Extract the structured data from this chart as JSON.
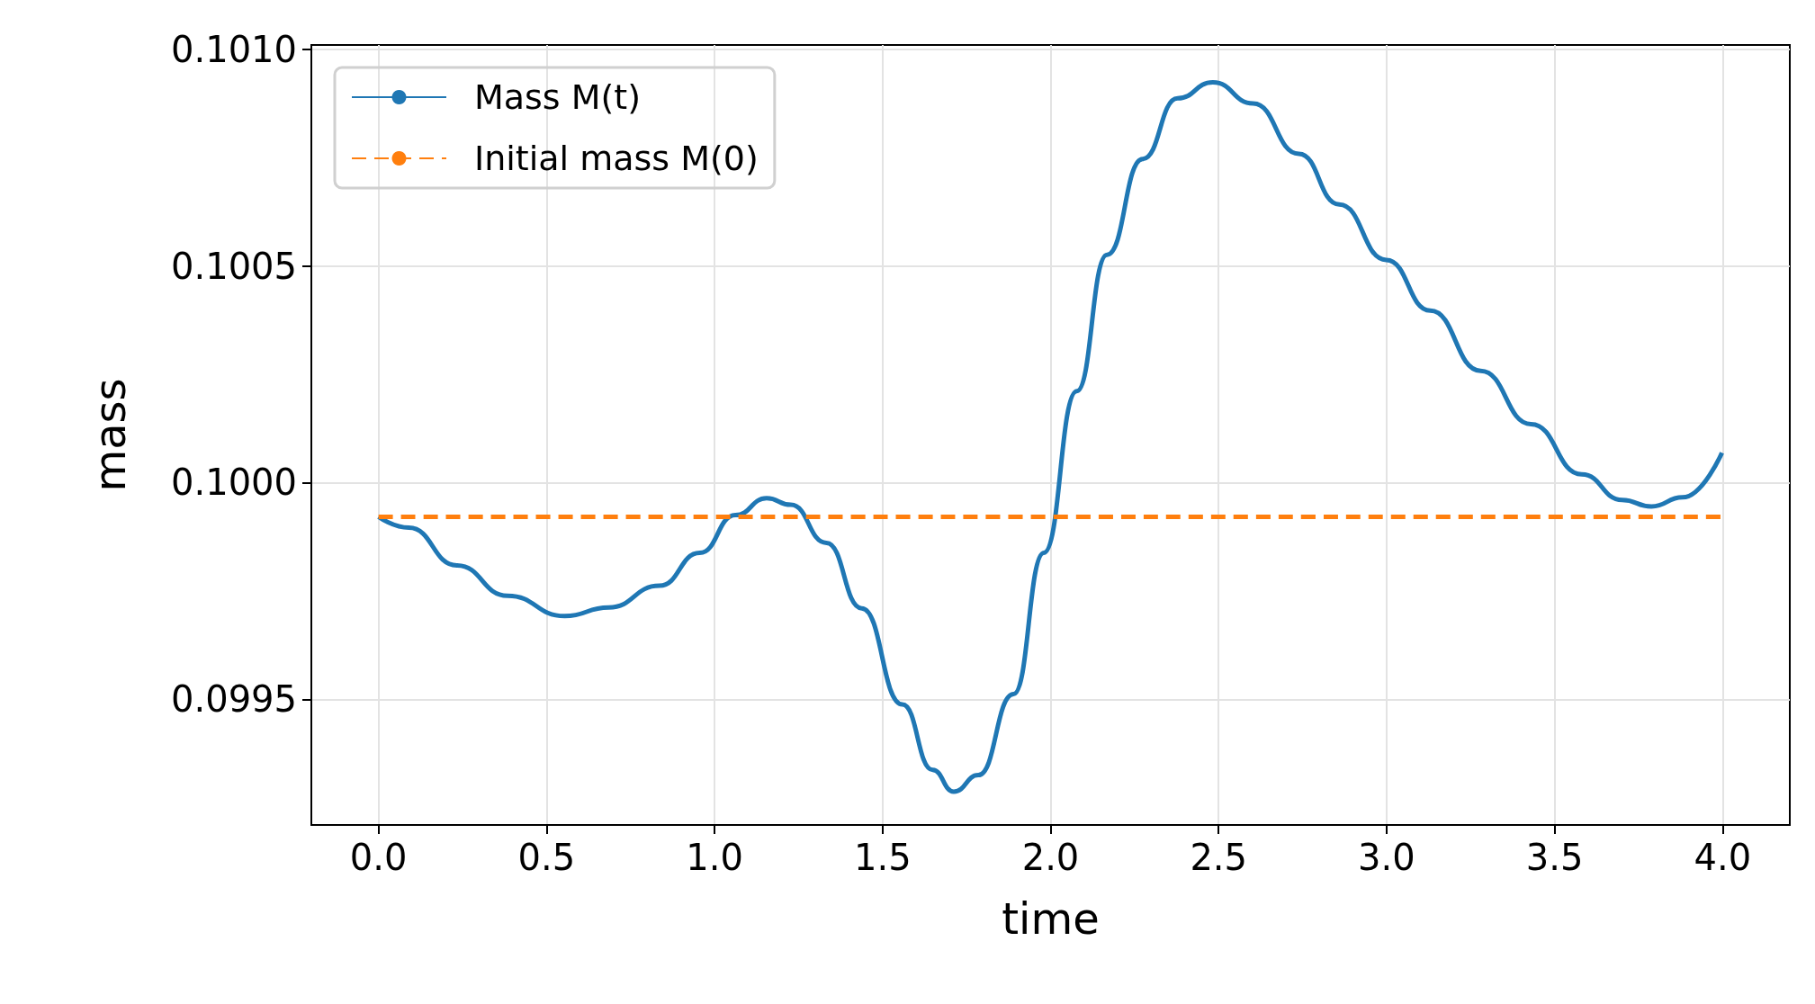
{
  "chart_data": {
    "type": "line",
    "xlabel": "time",
    "ylabel": "mass",
    "xlim": [
      -0.2,
      4.2
    ],
    "xticks": [
      {
        "value": 0,
        "label": "0.0"
      },
      {
        "value": 0.5,
        "label": "0.5"
      },
      {
        "value": 1,
        "label": "1.0"
      },
      {
        "value": 1.5,
        "label": "1.5"
      },
      {
        "value": 2,
        "label": "2.0"
      },
      {
        "value": 2.5,
        "label": "2.5"
      },
      {
        "value": 3,
        "label": "3.0"
      },
      {
        "value": 3.5,
        "label": "3.5"
      },
      {
        "value": 4,
        "label": "4.0"
      }
    ],
    "ylim": [
      0.09921,
      0.10101
    ],
    "yticks": [
      {
        "value": 0.0995,
        "label": "0.0995"
      },
      {
        "value": 0.1,
        "label": "0.1000"
      },
      {
        "value": 0.1005,
        "label": "0.1005"
      },
      {
        "value": 0.101,
        "label": "0.1010"
      }
    ],
    "grid": true,
    "legend": "top left",
    "marker": "none",
    "series": [
      {
        "name": "Mass M(t)",
        "color": "#1f77b4",
        "line_style": "solid",
        "x": [
          0,
          0.09,
          0.233,
          0.384,
          0.554,
          0.685,
          0.836,
          0.956,
          1.062,
          1.155,
          1.227,
          1.333,
          1.438,
          1.559,
          1.649,
          1.712,
          1.785,
          1.89,
          1.98,
          2.078,
          2.168,
          2.274,
          2.378,
          2.483,
          2.603,
          2.739,
          2.859,
          2.999,
          3.13,
          3.28,
          3.43,
          3.581,
          3.701,
          3.788,
          3.881,
          3.998
        ],
        "values": [
          0.099921,
          0.099896,
          0.099809,
          0.099739,
          0.099692,
          0.099712,
          0.099762,
          0.099838,
          0.099925,
          0.099964,
          0.099949,
          0.099861,
          0.09971,
          0.099488,
          0.099337,
          0.099287,
          0.099325,
          0.099512,
          0.099838,
          0.100211,
          0.100526,
          0.100747,
          0.100887,
          0.100924,
          0.100875,
          0.100759,
          0.100642,
          0.100514,
          0.100397,
          0.100258,
          0.100135,
          0.100019,
          0.09996,
          0.099945,
          0.099966,
          0.100069
        ]
      },
      {
        "name": "Initial mass M(0)",
        "color": "#ff7f0e",
        "line_style": "dashed",
        "x": [
          0,
          4
        ],
        "values": [
          0.099921,
          0.099921
        ]
      }
    ]
  }
}
